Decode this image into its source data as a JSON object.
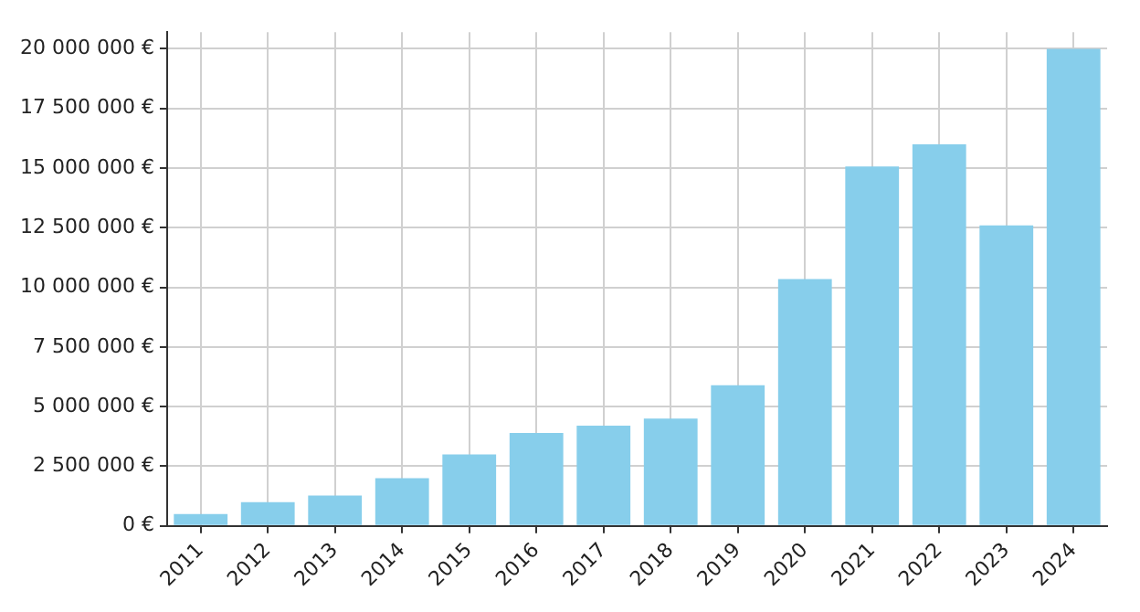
{
  "chart_data": {
    "type": "bar",
    "categories": [
      "2011",
      "2012",
      "2013",
      "2014",
      "2015",
      "2016",
      "2017",
      "2018",
      "2019",
      "2020",
      "2021",
      "2022",
      "2023",
      "2024"
    ],
    "values": [
      500000,
      1000000,
      1270000,
      2000000,
      3000000,
      3900000,
      4200000,
      4500000,
      5900000,
      10350000,
      15070000,
      16000000,
      12600000,
      20000000
    ],
    "color": "#87ceeb",
    "ylim": [
      0,
      20700000
    ],
    "yticks": [
      {
        "value": 0,
        "label": "0 €"
      },
      {
        "value": 2500000,
        "label": "2 500 000 €"
      },
      {
        "value": 5000000,
        "label": "5 000 000 €"
      },
      {
        "value": 7500000,
        "label": "7 500 000 €"
      },
      {
        "value": 10000000,
        "label": "10 000 000 €"
      },
      {
        "value": 12500000,
        "label": "12 500 000 €"
      },
      {
        "value": 15000000,
        "label": "15 000 000 €"
      },
      {
        "value": 17500000,
        "label": "17 500 000 €"
      },
      {
        "value": 20000000,
        "label": "20 000 000 €"
      }
    ],
    "grid": true
  }
}
